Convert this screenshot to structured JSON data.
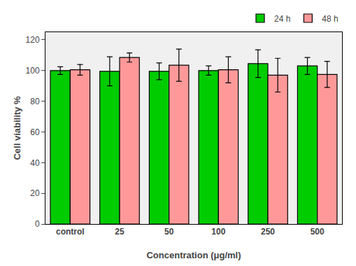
{
  "chart_data": {
    "type": "bar",
    "categories": [
      "control",
      "25",
      "50",
      "100",
      "250",
      "500"
    ],
    "xlabel": "Concentration (μg/ml)",
    "ylabel": "Cell viability %",
    "series": [
      {
        "name": "24 h",
        "color": "#00CC00",
        "values": [
          100.0,
          99.5,
          99.5,
          100.0,
          104.5,
          103.0
        ],
        "errors": [
          2.5,
          9.5,
          5.5,
          3.0,
          9.0,
          5.5
        ]
      },
      {
        "name": "48 h",
        "color": "#FF9999",
        "values": [
          100.5,
          108.5,
          103.5,
          100.5,
          97.0,
          97.5
        ],
        "errors": [
          3.5,
          3.0,
          10.5,
          8.5,
          11.0,
          8.5
        ]
      }
    ],
    "ylim": [
      0,
      125
    ],
    "yticks": [
      0,
      20,
      40,
      60,
      80,
      100,
      120
    ],
    "grid": false,
    "legend": "upper right"
  }
}
